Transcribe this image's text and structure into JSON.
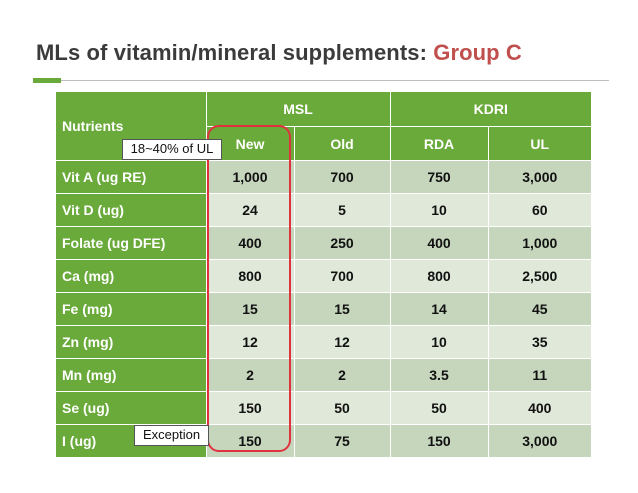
{
  "title": {
    "main": "MLs of vitamin/mineral supplements: ",
    "accent": "Group C"
  },
  "colors": {
    "green": "#6aaa3a",
    "row_light": "#dfe8d9",
    "row_dark": "#c6d6bd",
    "accent_red": "#c0504d",
    "highlight_red": "#e0323c"
  },
  "table": {
    "nutrients_header": "Nutrients",
    "group_headers": [
      "MSL",
      "KDRI"
    ],
    "sub_headers": [
      "New",
      "Old",
      "RDA",
      "UL"
    ],
    "rows": [
      {
        "nutrient": "Vit A (ug RE)",
        "values": [
          "1,000",
          "700",
          "750",
          "3,000"
        ]
      },
      {
        "nutrient": "Vit D (ug)",
        "values": [
          "24",
          "5",
          "10",
          "60"
        ]
      },
      {
        "nutrient": "Folate (ug DFE)",
        "values": [
          "400",
          "250",
          "400",
          "1,000"
        ]
      },
      {
        "nutrient": "Ca (mg)",
        "values": [
          "800",
          "700",
          "800",
          "2,500"
        ]
      },
      {
        "nutrient": "Fe (mg)",
        "values": [
          "15",
          "15",
          "14",
          "45"
        ]
      },
      {
        "nutrient": "Zn (mg)",
        "values": [
          "12",
          "12",
          "10",
          "35"
        ]
      },
      {
        "nutrient": "Mn (mg)",
        "values": [
          "2",
          "2",
          "3.5",
          "11"
        ]
      },
      {
        "nutrient": "Se (ug)",
        "values": [
          "150",
          "50",
          "50",
          "400"
        ]
      },
      {
        "nutrient": "I (ug)",
        "values": [
          "150",
          "75",
          "150",
          "3,000"
        ]
      }
    ]
  },
  "callouts": {
    "ul_range": "18~40% of UL",
    "exception": "Exception"
  }
}
